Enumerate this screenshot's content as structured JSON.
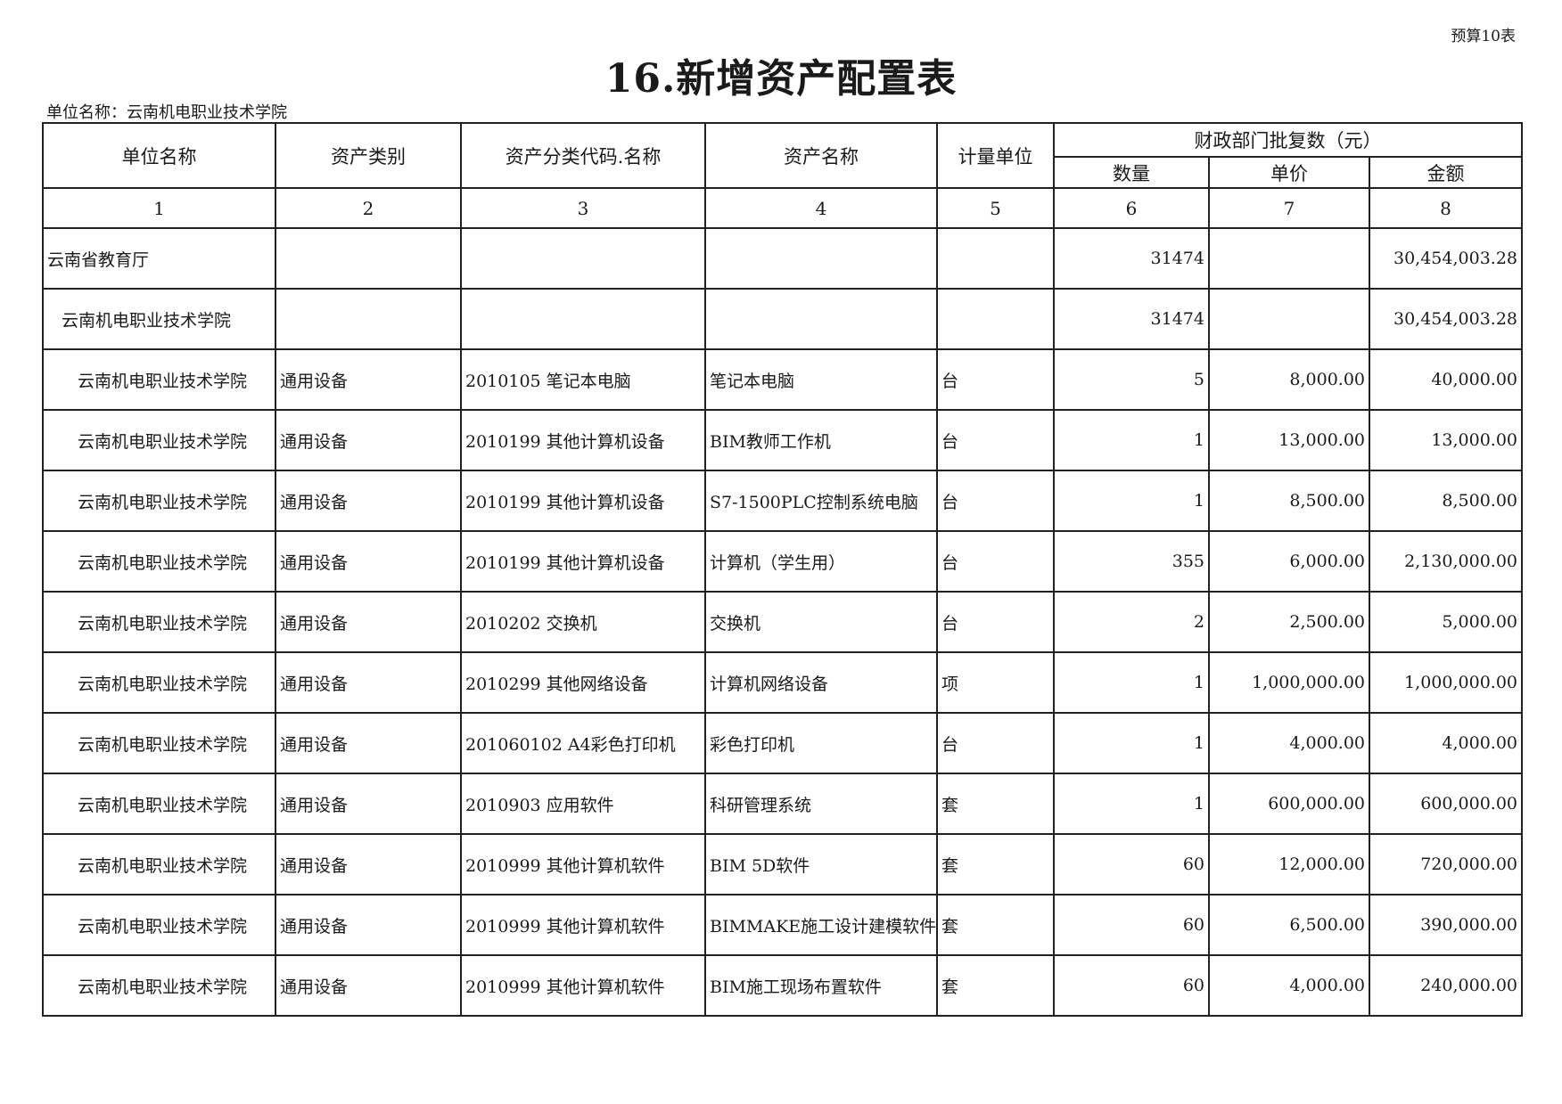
{
  "form_number": "预算10表",
  "title": "16.新增资产配置表",
  "unit_label": "单位名称：云南机电职业技术学院",
  "headers": {
    "unit_name": "单位名称",
    "asset_category": "资产类别",
    "asset_code_name": "资产分类代码.名称",
    "asset_name": "资产名称",
    "measure_unit": "计量单位",
    "approved_group": "财政部门批复数（元）",
    "quantity": "数量",
    "unit_price": "单价",
    "amount": "金额"
  },
  "column_numbers": [
    "1",
    "2",
    "3",
    "4",
    "5",
    "6",
    "7",
    "8"
  ],
  "rows": [
    {
      "level": 0,
      "unit": "云南省教育厅",
      "category": "",
      "code": "",
      "name": "",
      "measure": "",
      "qty": "31474",
      "price": "",
      "amount": "30,454,003.28"
    },
    {
      "level": 1,
      "unit": "云南机电职业技术学院",
      "category": "",
      "code": "",
      "name": "",
      "measure": "",
      "qty": "31474",
      "price": "",
      "amount": "30,454,003.28"
    },
    {
      "level": 2,
      "unit": "云南机电职业技术学院",
      "category": "通用设备",
      "code": "2010105 笔记本电脑",
      "name": "笔记本电脑",
      "measure": "台",
      "qty": "5",
      "price": "8,000.00",
      "amount": "40,000.00"
    },
    {
      "level": 2,
      "unit": "云南机电职业技术学院",
      "category": "通用设备",
      "code": "2010199 其他计算机设备",
      "name": "BIM教师工作机",
      "measure": "台",
      "qty": "1",
      "price": "13,000.00",
      "amount": "13,000.00"
    },
    {
      "level": 2,
      "unit": "云南机电职业技术学院",
      "category": "通用设备",
      "code": "2010199 其他计算机设备",
      "name": "S7-1500PLC控制系统电脑",
      "measure": "台",
      "qty": "1",
      "price": "8,500.00",
      "amount": "8,500.00"
    },
    {
      "level": 2,
      "unit": "云南机电职业技术学院",
      "category": "通用设备",
      "code": "2010199 其他计算机设备",
      "name": "计算机（学生用）",
      "measure": "台",
      "qty": "355",
      "price": "6,000.00",
      "amount": "2,130,000.00"
    },
    {
      "level": 2,
      "unit": "云南机电职业技术学院",
      "category": "通用设备",
      "code": "2010202 交换机",
      "name": "交换机",
      "measure": "台",
      "qty": "2",
      "price": "2,500.00",
      "amount": "5,000.00"
    },
    {
      "level": 2,
      "unit": "云南机电职业技术学院",
      "category": "通用设备",
      "code": "2010299 其他网络设备",
      "name": "计算机网络设备",
      "measure": "项",
      "qty": "1",
      "price": "1,000,000.00",
      "amount": "1,000,000.00"
    },
    {
      "level": 2,
      "unit": "云南机电职业技术学院",
      "category": "通用设备",
      "code": "201060102 A4彩色打印机",
      "name": "彩色打印机",
      "measure": "台",
      "qty": "1",
      "price": "4,000.00",
      "amount": "4,000.00"
    },
    {
      "level": 2,
      "unit": "云南机电职业技术学院",
      "category": "通用设备",
      "code": "2010903 应用软件",
      "name": "科研管理系统",
      "measure": "套",
      "qty": "1",
      "price": "600,000.00",
      "amount": "600,000.00"
    },
    {
      "level": 2,
      "unit": "云南机电职业技术学院",
      "category": "通用设备",
      "code": "2010999 其他计算机软件",
      "name": "BIM 5D软件",
      "measure": "套",
      "qty": "60",
      "price": "12,000.00",
      "amount": "720,000.00"
    },
    {
      "level": 2,
      "unit": "云南机电职业技术学院",
      "category": "通用设备",
      "code": "2010999 其他计算机软件",
      "name": "BIMMAKE施工设计建模软件",
      "measure": "套",
      "qty": "60",
      "price": "6,500.00",
      "amount": "390,000.00"
    },
    {
      "level": 2,
      "unit": "云南机电职业技术学院",
      "category": "通用设备",
      "code": "2010999 其他计算机软件",
      "name": "BIM施工现场布置软件",
      "measure": "套",
      "qty": "60",
      "price": "4,000.00",
      "amount": "240,000.00"
    }
  ]
}
